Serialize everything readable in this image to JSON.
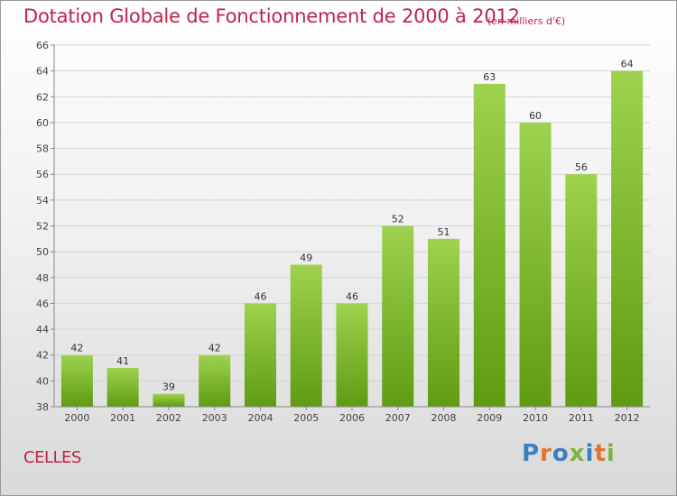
{
  "header": {
    "title": "Dotation Globale de Fonctionnement de 2000 à 2012",
    "units": "(en milliers d'€)"
  },
  "footer": {
    "commune": "CELLES",
    "logo_text": "Proxiti",
    "logo_colors": [
      "#3a7fc1",
      "#e0762a",
      "#3a7fc1",
      "#7cb342",
      "#3a7fc1",
      "#e0762a",
      "#7cb342"
    ]
  },
  "chart_data": {
    "type": "bar",
    "categories": [
      "2000",
      "2001",
      "2002",
      "2003",
      "2004",
      "2005",
      "2006",
      "2007",
      "2008",
      "2009",
      "2010",
      "2011",
      "2012"
    ],
    "values": [
      42,
      41,
      39,
      42,
      46,
      49,
      46,
      52,
      51,
      63,
      60,
      56,
      64
    ],
    "data_labels": [
      "42",
      "41",
      "39",
      "42",
      "46",
      "49",
      "46",
      "52",
      "51",
      "63",
      "60",
      "56",
      "64"
    ],
    "ylim": [
      38,
      66
    ],
    "yticks": [
      38,
      40,
      42,
      44,
      46,
      48,
      50,
      52,
      54,
      56,
      58,
      60,
      62,
      64,
      66
    ],
    "grid": true,
    "bar_color_top": "#9ed24f",
    "bar_color_bottom": "#5f9b12",
    "grid_color": "#d4d4d4"
  }
}
